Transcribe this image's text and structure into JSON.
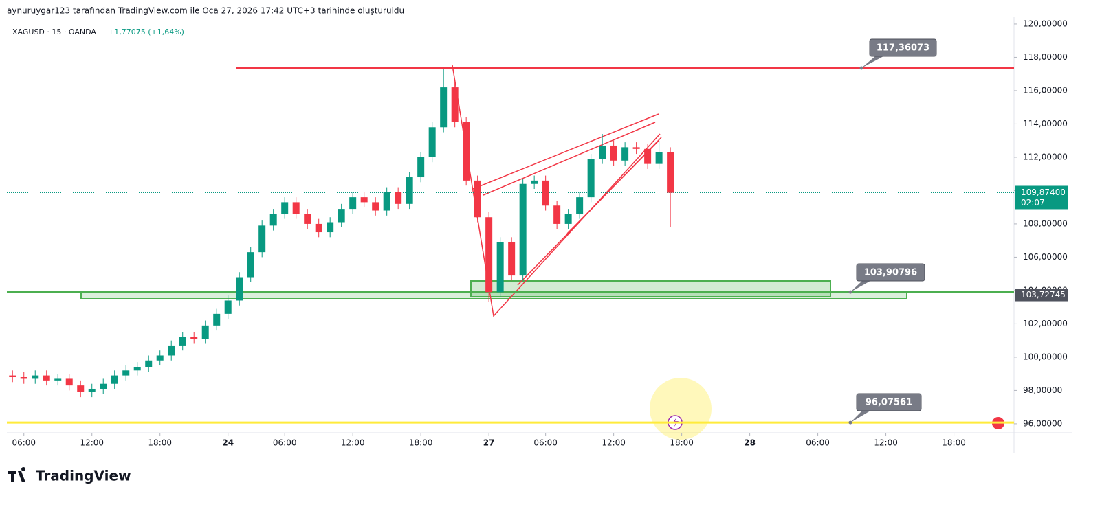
{
  "header": "aynuruygar123 tarafından TradingView.com ile Oca 27, 2026 17:42 UTC+3 tarihinde oluşturuldu",
  "footer": {
    "brand": "TradingView"
  },
  "chart_data": {
    "type": "candlestick",
    "symbol": "XAGUSD · 15 · OANDA",
    "change": "+1,77075 (+1,64%)",
    "up_color": "#089981",
    "down_color": "#f23645",
    "x": [
      5,
      6,
      7,
      8,
      9,
      10,
      11,
      12,
      13,
      14,
      15,
      16,
      17,
      18,
      19,
      20,
      21,
      22,
      23,
      24,
      25,
      26,
      27,
      28,
      29,
      30,
      31,
      32,
      33,
      34,
      35,
      36,
      37,
      38,
      39,
      40,
      41,
      42,
      43,
      44,
      45,
      46,
      47,
      48,
      49,
      50,
      51,
      52,
      53,
      54,
      55,
      56,
      57,
      58,
      59,
      60,
      61,
      62,
      63
    ],
    "open": [
      98.9,
      98.8,
      98.7,
      98.9,
      98.6,
      98.7,
      98.3,
      97.9,
      98.1,
      98.4,
      98.9,
      99.2,
      99.4,
      99.8,
      100.1,
      100.7,
      101.2,
      101.1,
      101.9,
      102.6,
      103.4,
      104.8,
      106.3,
      107.9,
      108.6,
      109.3,
      108.6,
      108.0,
      107.5,
      108.1,
      108.9,
      109.6,
      109.3,
      108.8,
      109.9,
      109.2,
      110.8,
      112.0,
      113.8,
      116.2,
      114.1,
      110.6,
      108.4,
      103.9,
      106.9,
      104.9,
      110.4,
      110.6,
      109.1,
      108.0,
      108.6,
      109.6,
      111.9,
      112.7,
      111.8,
      112.6,
      112.5,
      111.6,
      112.3
    ],
    "high": [
      99.2,
      99.1,
      99.2,
      99.2,
      99.0,
      99.0,
      98.6,
      98.4,
      98.7,
      99.2,
      99.5,
      99.7,
      100.1,
      100.4,
      101.0,
      101.5,
      101.5,
      102.2,
      102.9,
      103.7,
      105.1,
      106.6,
      108.2,
      108.9,
      109.6,
      109.6,
      108.9,
      108.3,
      108.4,
      109.2,
      109.9,
      109.9,
      109.6,
      110.2,
      110.2,
      111.1,
      112.3,
      114.1,
      117.3,
      116.5,
      114.4,
      110.9,
      108.7,
      107.2,
      107.2,
      110.7,
      110.9,
      110.9,
      109.4,
      108.9,
      109.9,
      112.2,
      113.4,
      113.0,
      112.9,
      112.9,
      112.8,
      113.0,
      112.6
    ],
    "low": [
      98.5,
      98.4,
      98.4,
      98.3,
      98.3,
      98.0,
      97.6,
      97.6,
      97.8,
      98.1,
      98.6,
      98.9,
      99.1,
      99.5,
      99.8,
      100.4,
      100.8,
      100.8,
      101.6,
      102.3,
      103.1,
      104.5,
      106.0,
      107.6,
      108.3,
      108.3,
      107.7,
      107.2,
      107.2,
      107.8,
      108.6,
      109.0,
      108.5,
      108.5,
      108.9,
      108.9,
      110.5,
      111.7,
      113.5,
      113.8,
      110.3,
      108.1,
      103.3,
      103.6,
      104.6,
      104.6,
      110.1,
      108.8,
      107.7,
      107.7,
      108.3,
      109.3,
      111.6,
      111.5,
      111.5,
      112.2,
      111.3,
      111.3,
      107.8
    ],
    "close": [
      98.8,
      98.7,
      98.9,
      98.6,
      98.7,
      98.3,
      97.9,
      98.1,
      98.4,
      98.9,
      99.2,
      99.4,
      99.8,
      100.1,
      100.7,
      101.2,
      101.1,
      101.9,
      102.6,
      103.4,
      104.8,
      106.3,
      107.9,
      108.6,
      109.3,
      108.6,
      108.0,
      107.5,
      108.1,
      108.9,
      109.6,
      109.3,
      108.8,
      109.9,
      109.2,
      110.8,
      112.0,
      113.8,
      116.2,
      114.1,
      110.6,
      108.4,
      103.9,
      106.9,
      104.9,
      110.4,
      110.6,
      109.1,
      108.0,
      108.6,
      109.6,
      111.9,
      112.7,
      111.8,
      112.6,
      112.5,
      111.6,
      112.3,
      109.87
    ],
    "xlim": [
      4.5,
      93.3
    ],
    "ylim": [
      95.46,
      120.41
    ],
    "xticks": [
      {
        "value": 6,
        "label": "06:00"
      },
      {
        "value": 12,
        "label": "12:00"
      },
      {
        "value": 18,
        "label": "18:00"
      },
      {
        "value": 24,
        "label": "24"
      },
      {
        "value": 29,
        "label": "06:00"
      },
      {
        "value": 35,
        "label": "12:00"
      },
      {
        "value": 41,
        "label": "18:00"
      },
      {
        "value": 47,
        "label": "27"
      },
      {
        "value": 52,
        "label": "06:00"
      },
      {
        "value": 58,
        "label": "12:00"
      },
      {
        "value": 64,
        "label": "18:00"
      },
      {
        "value": 70,
        "label": "28"
      },
      {
        "value": 76,
        "label": "06:00"
      },
      {
        "value": 82,
        "label": "12:00"
      },
      {
        "value": 88,
        "label": "18:00"
      }
    ],
    "yticks": [
      {
        "value": 96,
        "label": "96,00000"
      },
      {
        "value": 98,
        "label": "98,00000"
      },
      {
        "value": 100,
        "label": "100,00000"
      },
      {
        "value": 102,
        "label": "102,00000"
      },
      {
        "value": 104,
        "label": "104,00000"
      },
      {
        "value": 106,
        "label": "106,00000"
      },
      {
        "value": 108,
        "label": "108,00000"
      },
      {
        "value": 110,
        "label": "110,00000"
      },
      {
        "value": 112,
        "label": "112,00000"
      },
      {
        "value": 114,
        "label": "114,00000"
      },
      {
        "value": 116,
        "label": "116,00000"
      },
      {
        "value": 118,
        "label": "118,00000"
      },
      {
        "value": 120,
        "label": "120,00000"
      }
    ],
    "last_price": {
      "value": 109.874,
      "label": "109,87400",
      "countdown": "02:07"
    },
    "marker": {
      "value": 103.72745,
      "label": "103,72745"
    },
    "levels": [
      {
        "value": 117.36073,
        "label": "117,36073",
        "color": "#f23645"
      },
      {
        "value": 103.90796,
        "label": "103,90796",
        "color": "#4caf50"
      },
      {
        "value": 96.07561,
        "label": "96,07561",
        "color": "#ffeb3b"
      }
    ]
  }
}
